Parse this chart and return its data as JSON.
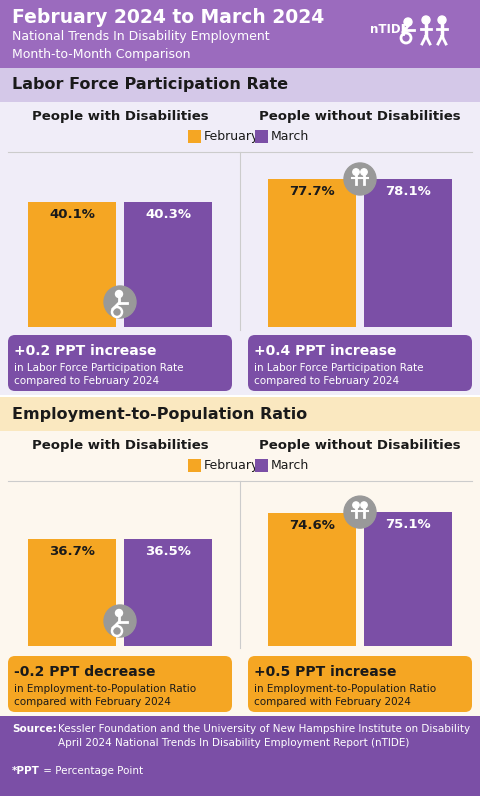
{
  "title_line1": "February 2024 to March 2024",
  "title_line2": "National Trends In Disability Employment\nMonth-to-Month Comparison",
  "header_bg": "#9B6BBE",
  "section1_label": "Labor Force Participation Rate",
  "section1_bg": "#D4C8E8",
  "section2_label": "Employment-to-Population Ratio",
  "section2_bg": "#FAE8C0",
  "content1_bg": "#F0EDF8",
  "content2_bg": "#FDF7EE",
  "col1_label": "People with Disabilities",
  "col2_label": "People without Disabilities",
  "legend_feb": "February",
  "legend_mar": "March",
  "color_feb": "#F5A623",
  "color_mar": "#7B4FA6",
  "color_icon_bg": "#999999",
  "lfpr_pwd_feb": 40.1,
  "lfpr_pwd_mar": 40.3,
  "lfpr_pwod_feb": 77.7,
  "lfpr_pwod_mar": 78.1,
  "epr_pwd_feb": 36.7,
  "epr_pwd_mar": 36.5,
  "epr_pwod_feb": 74.6,
  "epr_pwod_mar": 75.1,
  "box1_left_text1": "+0.2 PPT increase",
  "box1_left_text2": "in Labor Force Participation Rate\ncompared to February 2024",
  "box1_left_bg": "#7B4FA6",
  "box1_right_text1": "+0.4 PPT increase",
  "box1_right_text2": "in Labor Force Participation Rate\ncompared to February 2024",
  "box1_right_bg": "#7B4FA6",
  "box2_left_text1": "-0.2 PPT decrease",
  "box2_left_text2": "in Employment-to-Population Ratio\ncompared with February 2024",
  "box2_left_bg": "#F5A623",
  "box2_right_text1": "+0.5 PPT increase",
  "box2_right_text2": "in Employment-to-Population Ratio\ncompared with February 2024",
  "box2_right_bg": "#F5A623",
  "footer_bg": "#7B4FA6",
  "white": "#FFFFFF",
  "black": "#1A1A1A",
  "divider": "#CCCCCC"
}
